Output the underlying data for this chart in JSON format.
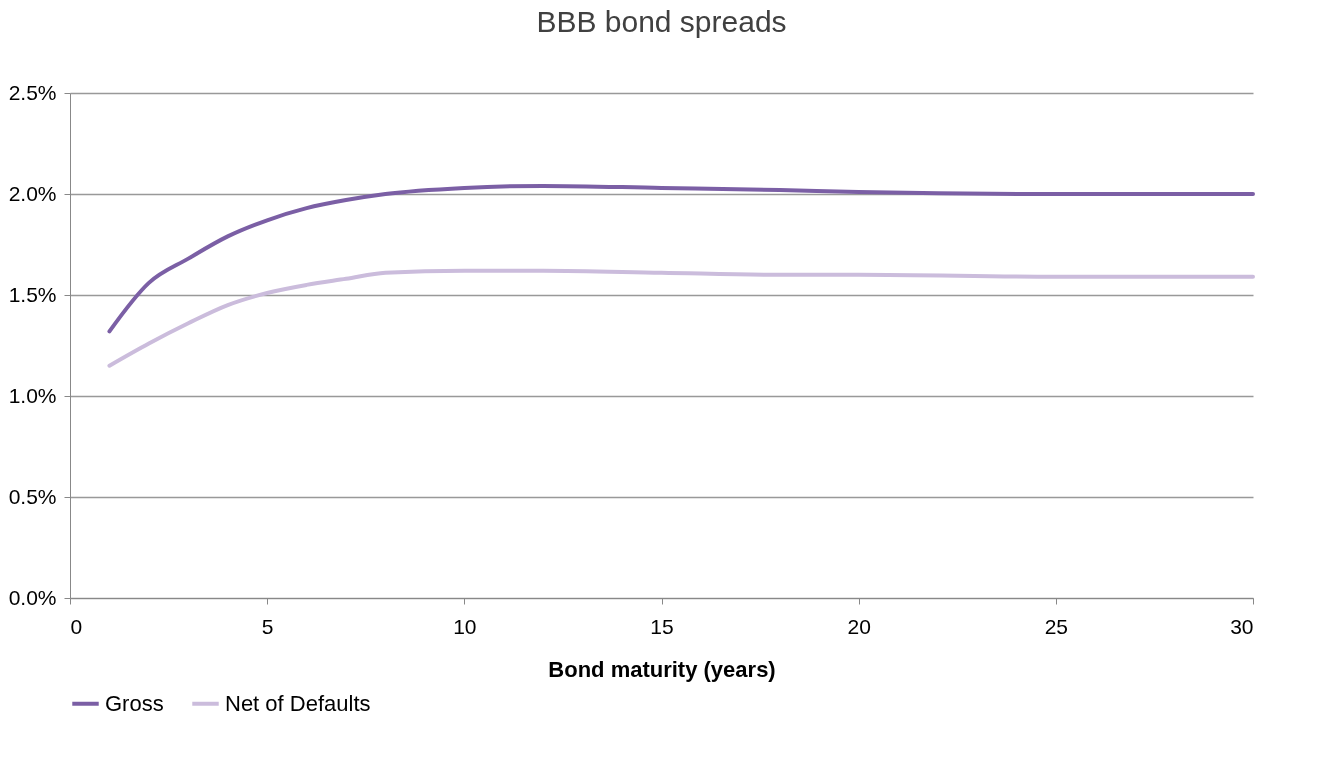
{
  "chart_data": {
    "type": "line",
    "title": "BBB bond spreads",
    "xlabel": "Bond maturity  (years)",
    "xlim": [
      0,
      30
    ],
    "xticks": [
      0,
      5,
      10,
      15,
      20,
      25,
      30
    ],
    "ylim": [
      0,
      2.5
    ],
    "yticks": [
      {
        "value": 0,
        "label": "0.0%"
      },
      {
        "value": 0.5,
        "label": "0.5%"
      },
      {
        "value": 1,
        "label": "1.0%"
      },
      {
        "value": 1.5,
        "label": "1.5%"
      },
      {
        "value": 2,
        "label": "2.0%"
      },
      {
        "value": 2.5,
        "label": "2.5%"
      }
    ],
    "x": [
      1,
      2,
      3,
      4,
      5,
      6,
      7,
      8,
      10,
      12,
      15,
      18,
      20,
      25,
      30
    ],
    "series": [
      {
        "name": "Gross",
        "color": "#7b5fa5",
        "values": [
          1.32,
          1.56,
          1.68,
          1.79,
          1.87,
          1.93,
          1.97,
          2.0,
          2.03,
          2.04,
          2.03,
          2.02,
          2.01,
          2.0,
          2.0
        ]
      },
      {
        "name": "Net of Defaults",
        "color": "#cbbcdc",
        "values": [
          1.15,
          1.26,
          1.36,
          1.45,
          1.51,
          1.55,
          1.58,
          1.61,
          1.62,
          1.62,
          1.61,
          1.6,
          1.6,
          1.59,
          1.59
        ]
      }
    ],
    "grid": "y",
    "legend": "bottom",
    "marker": "none",
    "line_style": "solid"
  }
}
